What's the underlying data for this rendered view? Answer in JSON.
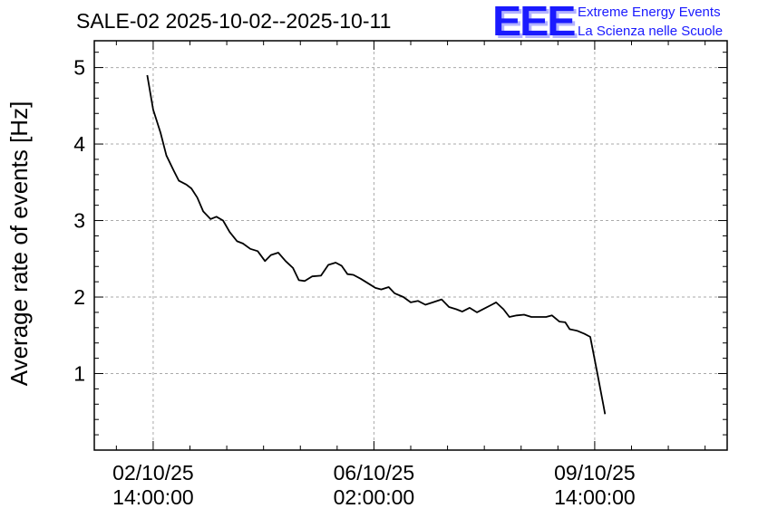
{
  "header": {
    "title": "SALE-02 2025-10-02--2025-10-11",
    "logo_text": "EEE",
    "org_line1": "Extreme Energy Events",
    "org_line2": "La Scienza nelle Scuole"
  },
  "colors": {
    "line": "#000000",
    "logo": "#1a1aff",
    "grid": "#aaaaaa"
  },
  "chart_data": {
    "type": "line",
    "title": "SALE-02 2025-10-02--2025-10-11",
    "xlabel": "",
    "ylabel": "Average rate of events [Hz]",
    "ylim": [
      0,
      5.35
    ],
    "yticks": [
      1,
      2,
      3,
      4,
      5
    ],
    "xticks": [
      {
        "x": 0.0,
        "label_date": "02/10/25",
        "label_time": "14:00:00"
      },
      {
        "x": 3.0,
        "label_date": "06/10/25",
        "label_time": "02:00:00"
      },
      {
        "x": 6.0,
        "label_date": "09/10/25",
        "label_time": "14:00:00"
      }
    ],
    "x_unit": "days since 02/10/25 14:00:00",
    "xlim": [
      -0.8,
      7.8
    ],
    "grid": true,
    "series": [
      {
        "values": [
          [
            -0.08,
            4.9
          ],
          [
            0.0,
            4.45
          ],
          [
            0.1,
            4.15
          ],
          [
            0.18,
            3.85
          ],
          [
            0.28,
            3.65
          ],
          [
            0.35,
            3.52
          ],
          [
            0.45,
            3.47
          ],
          [
            0.52,
            3.42
          ],
          [
            0.6,
            3.3
          ],
          [
            0.68,
            3.12
          ],
          [
            0.78,
            3.02
          ],
          [
            0.86,
            3.05
          ],
          [
            0.95,
            3.0
          ],
          [
            1.04,
            2.85
          ],
          [
            1.14,
            2.73
          ],
          [
            1.22,
            2.7
          ],
          [
            1.32,
            2.63
          ],
          [
            1.42,
            2.6
          ],
          [
            1.52,
            2.47
          ],
          [
            1.6,
            2.55
          ],
          [
            1.7,
            2.58
          ],
          [
            1.8,
            2.47
          ],
          [
            1.9,
            2.38
          ],
          [
            1.98,
            2.22
          ],
          [
            2.06,
            2.21
          ],
          [
            2.16,
            2.27
          ],
          [
            2.28,
            2.28
          ],
          [
            2.38,
            2.42
          ],
          [
            2.48,
            2.45
          ],
          [
            2.56,
            2.41
          ],
          [
            2.64,
            2.3
          ],
          [
            2.72,
            2.29
          ],
          [
            2.82,
            2.24
          ],
          [
            2.92,
            2.18
          ],
          [
            3.02,
            2.12
          ],
          [
            3.1,
            2.1
          ],
          [
            3.2,
            2.13
          ],
          [
            3.28,
            2.05
          ],
          [
            3.4,
            2.0
          ],
          [
            3.5,
            1.93
          ],
          [
            3.6,
            1.95
          ],
          [
            3.7,
            1.9
          ],
          [
            3.8,
            1.93
          ],
          [
            3.92,
            1.97
          ],
          [
            4.02,
            1.87
          ],
          [
            4.12,
            1.84
          ],
          [
            4.2,
            1.81
          ],
          [
            4.3,
            1.86
          ],
          [
            4.4,
            1.8
          ],
          [
            4.5,
            1.85
          ],
          [
            4.6,
            1.9
          ],
          [
            4.66,
            1.93
          ],
          [
            4.76,
            1.84
          ],
          [
            4.84,
            1.74
          ],
          [
            4.94,
            1.76
          ],
          [
            5.04,
            1.77
          ],
          [
            5.14,
            1.74
          ],
          [
            5.24,
            1.74
          ],
          [
            5.34,
            1.74
          ],
          [
            5.42,
            1.76
          ],
          [
            5.52,
            1.68
          ],
          [
            5.6,
            1.67
          ],
          [
            5.66,
            1.58
          ],
          [
            5.76,
            1.56
          ],
          [
            5.86,
            1.52
          ],
          [
            5.94,
            1.48
          ],
          [
            6.04,
            0.98
          ],
          [
            6.12,
            0.58
          ],
          [
            6.14,
            0.47
          ]
        ]
      }
    ]
  }
}
